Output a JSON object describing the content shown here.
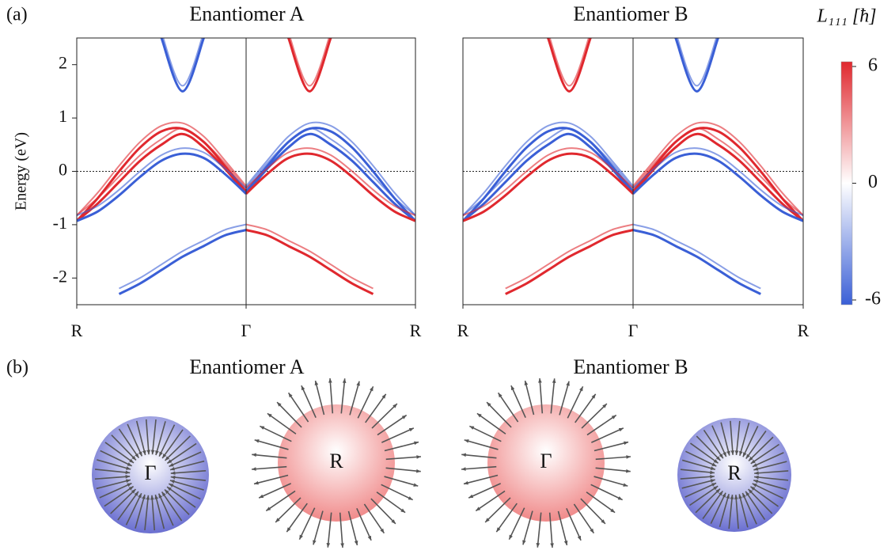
{
  "panel_a_label": "(a)",
  "chart_data": [
    {
      "type": "band",
      "title": "Enantiomer A",
      "ylabel": "Energy (eV)",
      "x": [
        0,
        0.125,
        0.25,
        0.375,
        0.5,
        0.625,
        0.75,
        0.875,
        1,
        1.125,
        1.25,
        1.375,
        1.5,
        1.625,
        1.75,
        1.875,
        2
      ],
      "xlim": [
        0,
        2
      ],
      "ylim": [
        -2.5,
        2.5
      ],
      "xticks": [
        {
          "value": 0,
          "label": "R"
        },
        {
          "value": 1,
          "label": "Γ"
        },
        {
          "value": 2,
          "label": "R"
        }
      ],
      "yticks": [
        -2,
        -1,
        0,
        1,
        2
      ],
      "hlines": [
        0
      ],
      "vlines": [
        1
      ],
      "series": [
        {
          "color": "#e0282e",
          "values": [
            -0.93,
            -0.5,
            0.0,
            0.45,
            0.75,
            0.8,
            0.55,
            0.1,
            -0.38,
            null,
            null,
            null,
            null,
            null,
            null,
            null,
            null
          ]
        },
        {
          "color": "#e0282e",
          "values": [
            -0.93,
            -0.6,
            -0.2,
            0.2,
            0.5,
            0.7,
            0.45,
            0.05,
            -0.42,
            null,
            null,
            null,
            null,
            null,
            null,
            null,
            null
          ]
        },
        {
          "color": "#3a5fd6",
          "values": [
            -0.93,
            -0.75,
            -0.45,
            -0.1,
            0.2,
            0.33,
            0.25,
            -0.05,
            -0.42,
            null,
            null,
            null,
            null,
            null,
            null,
            null,
            null
          ]
        },
        {
          "color": "#3a5fd6",
          "values": [
            null,
            null,
            null,
            null,
            null,
            null,
            null,
            null,
            -0.38,
            0.1,
            0.55,
            0.8,
            0.75,
            0.45,
            0.0,
            -0.5,
            -0.93
          ]
        },
        {
          "color": "#3a5fd6",
          "values": [
            null,
            null,
            null,
            null,
            null,
            null,
            null,
            null,
            -0.42,
            0.05,
            0.45,
            0.7,
            0.5,
            0.2,
            -0.2,
            -0.6,
            -0.93
          ]
        },
        {
          "color": "#e0282e",
          "values": [
            null,
            null,
            null,
            null,
            null,
            null,
            null,
            null,
            -0.42,
            -0.05,
            0.25,
            0.33,
            0.2,
            -0.1,
            -0.45,
            -0.75,
            -0.93
          ]
        },
        {
          "color": "#3a5fd6",
          "values": [
            null,
            null,
            null,
            null,
            2.5,
            1.5,
            2.5,
            null,
            null,
            null,
            null,
            null,
            null,
            null,
            null,
            null,
            null
          ]
        },
        {
          "color": "#e0282e",
          "values": [
            null,
            null,
            null,
            null,
            null,
            null,
            null,
            null,
            null,
            null,
            2.5,
            1.5,
            2.5,
            null,
            null,
            null,
            null
          ]
        },
        {
          "color": "#3a5fd6",
          "values": [
            null,
            null,
            -2.3,
            -2.1,
            -1.85,
            -1.6,
            -1.4,
            -1.2,
            -1.1,
            null,
            null,
            null,
            null,
            null,
            null,
            null,
            null
          ]
        },
        {
          "color": "#e0282e",
          "values": [
            null,
            null,
            null,
            null,
            null,
            null,
            null,
            null,
            -1.1,
            -1.2,
            -1.4,
            -1.6,
            -1.85,
            -2.1,
            -2.3,
            null,
            null
          ]
        }
      ]
    },
    {
      "type": "band",
      "title": "Enantiomer B",
      "x": [
        0,
        0.125,
        0.25,
        0.375,
        0.5,
        0.625,
        0.75,
        0.875,
        1,
        1.125,
        1.25,
        1.375,
        1.5,
        1.625,
        1.75,
        1.875,
        2
      ],
      "xlim": [
        0,
        2
      ],
      "ylim": [
        -2.5,
        2.5
      ],
      "xticks": [
        {
          "value": 0,
          "label": "R"
        },
        {
          "value": 1,
          "label": "Γ"
        },
        {
          "value": 2,
          "label": "R"
        }
      ],
      "hlines": [
        0
      ],
      "vlines": [
        1
      ],
      "series": [
        {
          "color": "#3a5fd6",
          "values": [
            -0.93,
            -0.5,
            0.0,
            0.45,
            0.75,
            0.8,
            0.55,
            0.1,
            -0.38,
            null,
            null,
            null,
            null,
            null,
            null,
            null,
            null
          ]
        },
        {
          "color": "#3a5fd6",
          "values": [
            -0.93,
            -0.6,
            -0.2,
            0.2,
            0.5,
            0.7,
            0.45,
            0.05,
            -0.42,
            null,
            null,
            null,
            null,
            null,
            null,
            null,
            null
          ]
        },
        {
          "color": "#e0282e",
          "values": [
            -0.93,
            -0.75,
            -0.45,
            -0.1,
            0.2,
            0.33,
            0.25,
            -0.05,
            -0.42,
            null,
            null,
            null,
            null,
            null,
            null,
            null,
            null
          ]
        },
        {
          "color": "#e0282e",
          "values": [
            null,
            null,
            null,
            null,
            null,
            null,
            null,
            null,
            -0.38,
            0.1,
            0.55,
            0.8,
            0.75,
            0.45,
            0.0,
            -0.5,
            -0.93
          ]
        },
        {
          "color": "#e0282e",
          "values": [
            null,
            null,
            null,
            null,
            null,
            null,
            null,
            null,
            -0.42,
            0.05,
            0.45,
            0.7,
            0.5,
            0.2,
            -0.2,
            -0.6,
            -0.93
          ]
        },
        {
          "color": "#3a5fd6",
          "values": [
            null,
            null,
            null,
            null,
            null,
            null,
            null,
            null,
            -0.42,
            -0.05,
            0.25,
            0.33,
            0.2,
            -0.1,
            -0.45,
            -0.75,
            -0.93
          ]
        },
        {
          "color": "#e0282e",
          "values": [
            null,
            null,
            null,
            null,
            2.5,
            1.5,
            2.5,
            null,
            null,
            null,
            null,
            null,
            null,
            null,
            null,
            null,
            null
          ]
        },
        {
          "color": "#3a5fd6",
          "values": [
            null,
            null,
            null,
            null,
            null,
            null,
            null,
            null,
            null,
            null,
            2.5,
            1.5,
            2.5,
            null,
            null,
            null,
            null
          ]
        },
        {
          "color": "#e0282e",
          "values": [
            null,
            null,
            -2.3,
            -2.1,
            -1.85,
            -1.6,
            -1.4,
            -1.2,
            -1.1,
            null,
            null,
            null,
            null,
            null,
            null,
            null,
            null
          ]
        },
        {
          "color": "#3a5fd6",
          "values": [
            null,
            null,
            null,
            null,
            null,
            null,
            null,
            null,
            -1.1,
            -1.2,
            -1.4,
            -1.6,
            -1.85,
            -2.1,
            -2.3,
            null,
            null
          ]
        }
      ]
    }
  ],
  "colorbar": {
    "label": "L₁₁₁ [ħ]",
    "ticks": [
      6,
      0,
      -6
    ],
    "colors": [
      "#e0282e",
      "#ffffff",
      "#3a5fd6"
    ]
  },
  "panel_b": {
    "label": "(b)",
    "titles": [
      "Enantiomer A",
      "Enantiomer B"
    ],
    "spheres": [
      {
        "label": "Γ",
        "color": "#6a6fd0"
      },
      {
        "label": "R",
        "color": "#f08a8a"
      },
      {
        "label": "Γ",
        "color": "#f08a8a"
      },
      {
        "label": "R",
        "color": "#6a6fd0"
      }
    ]
  }
}
